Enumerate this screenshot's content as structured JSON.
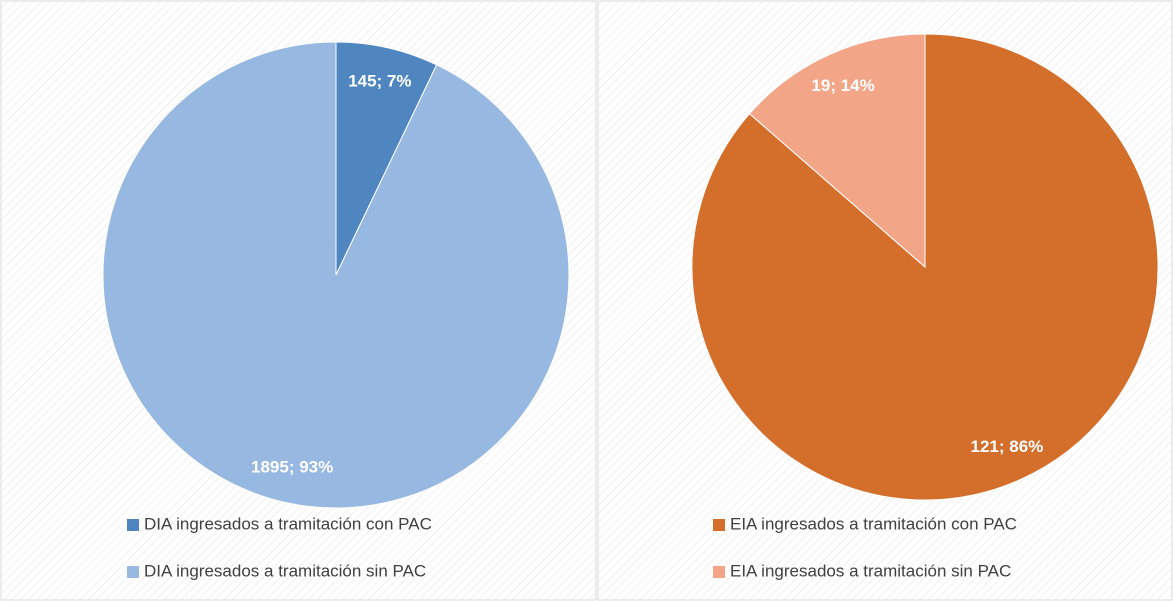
{
  "chart_data": [
    {
      "type": "pie",
      "categories": [
        "DIA ingresados a tramitación con PAC",
        "DIA ingresados a tramitación sin PAC"
      ],
      "values": [
        145,
        1895
      ],
      "value_labels": [
        "145; 7%",
        "1895; 93%"
      ],
      "colors": [
        "#4f86bf",
        "#97b8e0"
      ]
    },
    {
      "type": "pie",
      "categories": [
        "EIA ingresados a tramitación con PAC",
        "EIA ingresados a tramitación sin PAC"
      ],
      "values": [
        121,
        19
      ],
      "value_labels": [
        "121; 86%",
        "19; 14%"
      ],
      "colors": [
        "#d46e2b",
        "#f2a687"
      ]
    }
  ]
}
